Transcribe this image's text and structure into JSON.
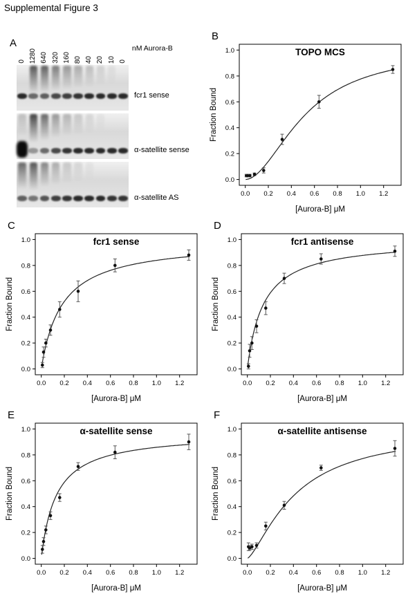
{
  "figure_title": "Supplemental Figure 3",
  "gel_panel": {
    "letter": "A",
    "lane_labels": [
      "0",
      "1280",
      "640",
      "320",
      "160",
      "80",
      "40",
      "20",
      "10",
      "0"
    ],
    "unit_label": "nM Aurora-B",
    "strips": [
      {
        "label": "fcr1 sense",
        "band_offset": 0.26,
        "smears": [
          0,
          0.8,
          0.75,
          0.6,
          0.45,
          0.35,
          0.25,
          0.15,
          0.08,
          0
        ],
        "bands": [
          0.85,
          0.55,
          0.6,
          0.7,
          0.75,
          0.8,
          0.85,
          0.85,
          0.85,
          0.85
        ]
      },
      {
        "label": "α-satellite sense",
        "band_offset": 0.12,
        "blob_lane": 0,
        "smears": [
          0.25,
          0.9,
          0.7,
          0.45,
          0.3,
          0.2,
          0.12,
          0.06,
          0,
          0
        ],
        "bands": [
          1,
          0.35,
          0.55,
          0.7,
          0.8,
          0.85,
          0.85,
          0.85,
          0.85,
          0.85
        ]
      },
      {
        "label": "α-satellite AS",
        "band_offset": 0.14,
        "smears": [
          0.7,
          0.8,
          0.55,
          0.35,
          0.2,
          0.12,
          0.06,
          0,
          0,
          0
        ],
        "bands": [
          0.6,
          0.5,
          0.65,
          0.75,
          0.8,
          0.85,
          0.85,
          0.85,
          0.8,
          0.8
        ]
      }
    ]
  },
  "chart_data": [
    {
      "panel": "B",
      "type": "scatter",
      "title": "TOPO MCS",
      "xlabel": "[Aurora-B] μM",
      "ylabel": "Fraction Bound",
      "xlim": [
        0,
        1.3
      ],
      "ylim": [
        0,
        1.0
      ],
      "xticks": [
        0,
        0.2,
        0.4,
        0.6,
        0.8,
        1.0,
        1.2
      ],
      "yticks": [
        0,
        0.2,
        0.4,
        0.6,
        0.8,
        1.0
      ],
      "x": [
        0.01,
        0.02,
        0.04,
        0.08,
        0.16,
        0.32,
        0.64,
        1.28
      ],
      "y": [
        0.03,
        0.03,
        0.03,
        0.04,
        0.07,
        0.31,
        0.6,
        0.85
      ],
      "yerr": [
        0.01,
        0.01,
        0.01,
        0.01,
        0.02,
        0.04,
        0.05,
        0.03
      ],
      "fit": {
        "model": "hill",
        "bmax": 1.0,
        "kd": 0.52,
        "n": 1.9
      }
    },
    {
      "panel": "C",
      "type": "scatter",
      "title": "fcr1 sense",
      "xlabel": "[Aurora-B] μM",
      "ylabel": "Fraction Bound",
      "xlim": [
        0,
        1.3
      ],
      "ylim": [
        0,
        1.0
      ],
      "xticks": [
        0,
        0.2,
        0.4,
        0.6,
        0.8,
        1.0,
        1.2
      ],
      "yticks": [
        0,
        0.2,
        0.4,
        0.6,
        0.8,
        1.0
      ],
      "x": [
        0.01,
        0.02,
        0.04,
        0.08,
        0.16,
        0.32,
        0.64,
        1.28
      ],
      "y": [
        0.03,
        0.13,
        0.2,
        0.3,
        0.46,
        0.6,
        0.8,
        0.88
      ],
      "yerr": [
        0.02,
        0.04,
        0.03,
        0.04,
        0.06,
        0.08,
        0.05,
        0.04
      ],
      "fit": {
        "model": "hyperbola",
        "bmax": 0.99,
        "kd": 0.18,
        "n": 1
      }
    },
    {
      "panel": "D",
      "type": "scatter",
      "title": "fcr1 antisense",
      "xlabel": "[Aurora-B] μM",
      "ylabel": "Fraction Bound",
      "xlim": [
        0,
        1.3
      ],
      "ylim": [
        0,
        1.0
      ],
      "xticks": [
        0,
        0.2,
        0.4,
        0.6,
        0.8,
        1.0,
        1.2
      ],
      "yticks": [
        0,
        0.2,
        0.4,
        0.6,
        0.8,
        1.0
      ],
      "x": [
        0.01,
        0.02,
        0.04,
        0.08,
        0.16,
        0.32,
        0.64,
        1.28
      ],
      "y": [
        0.02,
        0.14,
        0.2,
        0.33,
        0.47,
        0.7,
        0.85,
        0.91
      ],
      "yerr": [
        0.02,
        0.05,
        0.05,
        0.05,
        0.05,
        0.04,
        0.04,
        0.04
      ],
      "fit": {
        "model": "hyperbola",
        "bmax": 1.0,
        "kd": 0.14,
        "n": 1
      }
    },
    {
      "panel": "E",
      "type": "scatter",
      "title": "α-satellite sense",
      "xlabel": "[Aurora-B] μM",
      "ylabel": "Fraction Bound",
      "xlim": [
        0,
        1.3
      ],
      "ylim": [
        0,
        1.0
      ],
      "xticks": [
        0,
        0.2,
        0.4,
        0.6,
        0.8,
        1.0,
        1.2
      ],
      "yticks": [
        0,
        0.2,
        0.4,
        0.6,
        0.8,
        1.0
      ],
      "x": [
        0.01,
        0.02,
        0.04,
        0.08,
        0.16,
        0.32,
        0.64,
        1.28
      ],
      "y": [
        0.07,
        0.13,
        0.22,
        0.33,
        0.47,
        0.71,
        0.82,
        0.9
      ],
      "yerr": [
        0.03,
        0.03,
        0.03,
        0.03,
        0.03,
        0.03,
        0.05,
        0.06
      ],
      "fit": {
        "model": "hyperbola",
        "bmax": 0.97,
        "kd": 0.13,
        "n": 1
      }
    },
    {
      "panel": "F",
      "type": "scatter",
      "title": "α-satellite antisense",
      "xlabel": "[Aurora-B] μM",
      "ylabel": "Fraction Bound",
      "xlim": [
        0,
        1.3
      ],
      "ylim": [
        0,
        1.0
      ],
      "xticks": [
        0,
        0.2,
        0.4,
        0.6,
        0.8,
        1.0,
        1.2
      ],
      "yticks": [
        0,
        0.2,
        0.4,
        0.6,
        0.8,
        1.0
      ],
      "x": [
        0.01,
        0.02,
        0.04,
        0.08,
        0.16,
        0.32,
        0.64,
        1.28
      ],
      "y": [
        0.09,
        0.08,
        0.09,
        0.1,
        0.25,
        0.41,
        0.7,
        0.85
      ],
      "yerr": [
        0.03,
        0.02,
        0.02,
        0.02,
        0.03,
        0.03,
        0.02,
        0.06
      ],
      "fit": {
        "model": "hill",
        "bmax": 1.0,
        "kd": 0.42,
        "n": 1.4
      }
    }
  ]
}
